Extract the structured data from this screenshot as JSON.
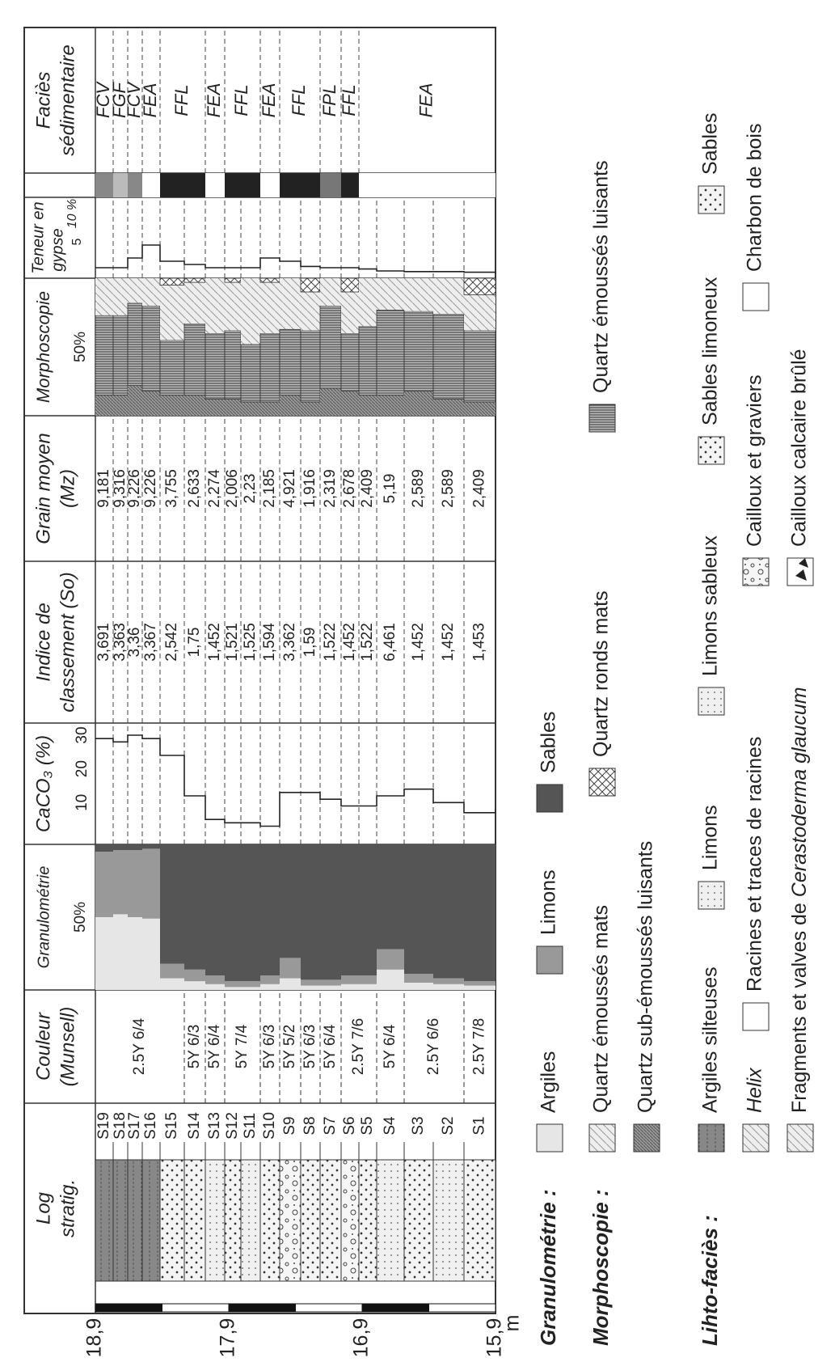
{
  "depth_axis": {
    "labels": [
      "18,9",
      "17,9",
      "16,9",
      "15,9"
    ],
    "unit": "m"
  },
  "headers": {
    "log": [
      "Log",
      "stratig."
    ],
    "couleur": [
      "Couleur",
      "(Munsell)"
    ],
    "granulometrie": "Granulométrie",
    "caco3": "CaCO₃ (%)",
    "indice": [
      "Indice de",
      "classement (So)"
    ],
    "grain": [
      "Grain moyen",
      "(Mz)"
    ],
    "morphoscopie": "Morphoscopie",
    "gypse": [
      "Teneur en",
      "gypse"
    ],
    "facies": [
      "Faciès",
      "sédimentaire"
    ]
  },
  "scales": {
    "granulometrie": "50%",
    "caco3": [
      "10",
      "20",
      "30"
    ],
    "morphoscopie": "50%",
    "gypse": [
      "5",
      "10 %"
    ]
  },
  "samples": [
    "S19",
    "S18",
    "S17",
    "S16",
    "S15",
    "S14",
    "S13",
    "S12",
    "S11",
    "S10",
    "S9",
    "S8",
    "S7",
    "S6",
    "S5",
    "S4",
    "S3",
    "S2",
    "S1"
  ],
  "colors": [
    "2.5Y 6/4",
    "5Y 6/3",
    "5Y 6/4",
    "5Y 7/4",
    "5Y 6/3",
    "5Y 5/2",
    "5Y 6/3",
    "5Y 6/4",
    "2.5Y 7/6",
    "5Y 6/4",
    "2.5Y 6/6",
    "2.5Y 7/8"
  ],
  "sorting_index": [
    "3,691",
    "3,363",
    "3,36",
    "3,367",
    "2,542",
    "1,75",
    "1,452",
    "1,521",
    "1,525",
    "1,594",
    "3,362",
    "1,59",
    "1,522",
    "1,452",
    "1,522",
    "6,461",
    "1,452",
    "1,452",
    "1,453"
  ],
  "mean_grain": [
    "9,181",
    "9,316",
    "9,226",
    "9,226",
    "3,755",
    "2,633",
    "2,274",
    "2,006",
    "2,23",
    "2,185",
    "4,921",
    "1,916",
    "2,319",
    "2,678",
    "2,409",
    "5,19",
    "2,589",
    "2,589",
    "2,409"
  ],
  "facies": [
    "FCV",
    "FGF",
    "FCV",
    "FEA",
    "FFL",
    "FEA",
    "FFL",
    "FEA",
    "FFL",
    "FPL",
    "FFL",
    "FEA"
  ],
  "legend": {
    "granulometrie": {
      "title": "Granulométrie :",
      "items": [
        "Argiles",
        "Limons",
        "Sables"
      ]
    },
    "morphoscopie": {
      "title": "Morphoscopie :",
      "items": [
        "Quartz émoussés mats",
        "Quartz ronds mats",
        "Quartz émoussés luisants",
        "Quartz sub-émoussés luisants"
      ]
    },
    "lithofacies": {
      "title": "Lihto-faciès :",
      "items": [
        "Argiles silteuses",
        "Limons",
        "Limons sableux",
        "Sables limoneux",
        "Sables",
        "Helix",
        "Racines et traces de racines",
        "Cailloux et graviers",
        "Charbon de bois",
        "Cailloux calcaire brûlé"
      ],
      "fragments": [
        "Fragments et valves de ",
        "Cerastoderma glaucum"
      ]
    }
  }
}
